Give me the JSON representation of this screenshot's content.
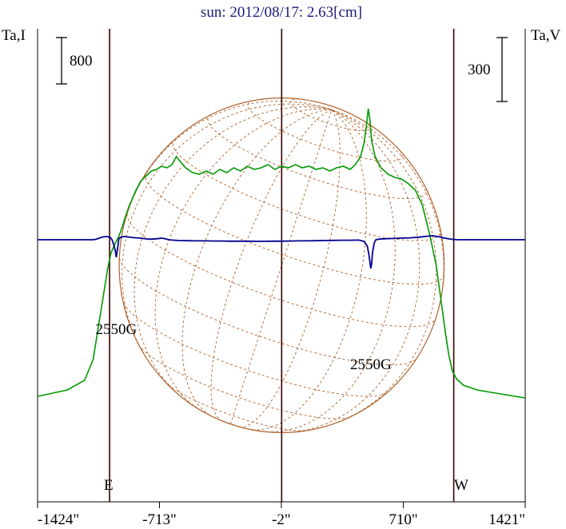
{
  "chart_data": {
    "type": "line",
    "title": "sun: 2012/08/17: 2.63[cm]",
    "y_left_label": "Ta,I",
    "y_right_label": "Ta,V",
    "scale_left": "800",
    "scale_right": "300",
    "x_tick_labels": [
      "-1424\"",
      "-713\"",
      "-2\"",
      "710\"",
      "1421\""
    ],
    "x_ticks": [
      -1424,
      -713,
      -2,
      710,
      1421
    ],
    "xlim": [
      -1424,
      1421
    ],
    "limb_markers": {
      "east": -1004,
      "west": 1004,
      "east_label": "E",
      "west_label": "W"
    },
    "disk_radius_arcsec": 948,
    "colors": {
      "intensity": "#009900",
      "polarization": "#000090",
      "disk": "#b0602a",
      "axis": "#000000",
      "marker": "#3a0000",
      "title": "#1a1a7a"
    },
    "annotations": [
      {
        "text": "2550G",
        "x": -965,
        "level": 0.61
      },
      {
        "text": "2550G",
        "x": 520,
        "level": 0.39
      }
    ],
    "series": [
      {
        "name": "I",
        "color": "#009900",
        "points": [
          [
            -1424,
            0.02
          ],
          [
            -1250,
            0.06
          ],
          [
            -1150,
            0.12
          ],
          [
            -1100,
            0.25
          ],
          [
            -1070,
            0.45
          ],
          [
            -1040,
            0.65
          ],
          [
            -1015,
            0.82
          ],
          [
            -995,
            0.92
          ],
          [
            -970,
            0.98
          ],
          [
            -950,
            1.02
          ],
          [
            -930,
            1.08
          ],
          [
            -910,
            1.15
          ],
          [
            -890,
            1.21
          ],
          [
            -870,
            1.26
          ],
          [
            -850,
            1.31
          ],
          [
            -820,
            1.37
          ],
          [
            -790,
            1.4
          ],
          [
            -760,
            1.43
          ],
          [
            -730,
            1.44
          ],
          [
            -700,
            1.46
          ],
          [
            -670,
            1.45
          ],
          [
            -640,
            1.47
          ],
          [
            -615,
            1.52
          ],
          [
            -600,
            1.5
          ],
          [
            -560,
            1.45
          ],
          [
            -520,
            1.42
          ],
          [
            -480,
            1.41
          ],
          [
            -440,
            1.43
          ],
          [
            -400,
            1.41
          ],
          [
            -360,
            1.44
          ],
          [
            -320,
            1.42
          ],
          [
            -280,
            1.45
          ],
          [
            -240,
            1.43
          ],
          [
            -200,
            1.46
          ],
          [
            -160,
            1.44
          ],
          [
            -120,
            1.45
          ],
          [
            -80,
            1.47
          ],
          [
            -40,
            1.44
          ],
          [
            0,
            1.46
          ],
          [
            40,
            1.45
          ],
          [
            80,
            1.47
          ],
          [
            120,
            1.45
          ],
          [
            160,
            1.46
          ],
          [
            200,
            1.44
          ],
          [
            240,
            1.45
          ],
          [
            280,
            1.43
          ],
          [
            320,
            1.45
          ],
          [
            360,
            1.46
          ],
          [
            400,
            1.44
          ],
          [
            430,
            1.47
          ],
          [
            460,
            1.52
          ],
          [
            480,
            1.6
          ],
          [
            495,
            1.72
          ],
          [
            505,
            1.82
          ],
          [
            515,
            1.75
          ],
          [
            525,
            1.62
          ],
          [
            545,
            1.52
          ],
          [
            580,
            1.45
          ],
          [
            620,
            1.41
          ],
          [
            660,
            1.39
          ],
          [
            700,
            1.38
          ],
          [
            740,
            1.35
          ],
          [
            780,
            1.31
          ],
          [
            820,
            1.22
          ],
          [
            860,
            1.05
          ],
          [
            900,
            0.85
          ],
          [
            930,
            0.62
          ],
          [
            955,
            0.42
          ],
          [
            975,
            0.28
          ],
          [
            995,
            0.18
          ],
          [
            1020,
            0.13
          ],
          [
            1060,
            0.09
          ],
          [
            1140,
            0.06
          ],
          [
            1250,
            0.04
          ],
          [
            1421,
            0.01
          ]
        ]
      },
      {
        "name": "V",
        "color": "#000090",
        "points": [
          [
            -1424,
            1.0
          ],
          [
            -1100,
            1.0
          ],
          [
            -1080,
            1.004
          ],
          [
            -1060,
            1.012
          ],
          [
            -1040,
            1.018
          ],
          [
            -1020,
            1.02
          ],
          [
            -1000,
            1.015
          ],
          [
            -990,
            1.0
          ],
          [
            -980,
            0.97
          ],
          [
            -970,
            0.93
          ],
          [
            -965,
            0.89
          ],
          [
            -958,
            0.94
          ],
          [
            -950,
            1.005
          ],
          [
            -940,
            1.015
          ],
          [
            -920,
            1.02
          ],
          [
            -900,
            1.018
          ],
          [
            -880,
            1.015
          ],
          [
            -850,
            1.012
          ],
          [
            -820,
            1.01
          ],
          [
            -790,
            1.005
          ],
          [
            -760,
            1.004
          ],
          [
            -730,
            1.006
          ],
          [
            -700,
            1.01
          ],
          [
            -680,
            1.006
          ],
          [
            -660,
            1.0
          ],
          [
            -640,
            0.998
          ],
          [
            -600,
            0.995
          ],
          [
            -550,
            0.994
          ],
          [
            -500,
            0.993
          ],
          [
            -450,
            0.993
          ],
          [
            -400,
            0.992
          ],
          [
            -350,
            0.992
          ],
          [
            -300,
            0.991
          ],
          [
            -250,
            0.991
          ],
          [
            -200,
            0.991
          ],
          [
            -150,
            0.99
          ],
          [
            -100,
            0.99
          ],
          [
            -50,
            0.991
          ],
          [
            0,
            0.991
          ],
          [
            50,
            0.992
          ],
          [
            100,
            0.993
          ],
          [
            150,
            0.993
          ],
          [
            200,
            0.994
          ],
          [
            250,
            0.995
          ],
          [
            300,
            0.996
          ],
          [
            350,
            0.997
          ],
          [
            400,
            0.997
          ],
          [
            450,
            0.998
          ],
          [
            480,
            0.99
          ],
          [
            500,
            0.96
          ],
          [
            510,
            0.9
          ],
          [
            515,
            0.86
          ],
          [
            520,
            0.82
          ],
          [
            525,
            0.85
          ],
          [
            530,
            0.92
          ],
          [
            540,
            0.98
          ],
          [
            550,
            1.0
          ],
          [
            570,
            1.004
          ],
          [
            600,
            1.006
          ],
          [
            650,
            1.008
          ],
          [
            700,
            1.01
          ],
          [
            750,
            1.012
          ],
          [
            800,
            1.016
          ],
          [
            850,
            1.022
          ],
          [
            880,
            1.025
          ],
          [
            900,
            1.022
          ],
          [
            920,
            1.018
          ],
          [
            950,
            1.01
          ],
          [
            980,
            1.005
          ],
          [
            1000,
            1.002
          ],
          [
            1030,
            1.0
          ],
          [
            1421,
            1.0
          ]
        ]
      }
    ]
  }
}
